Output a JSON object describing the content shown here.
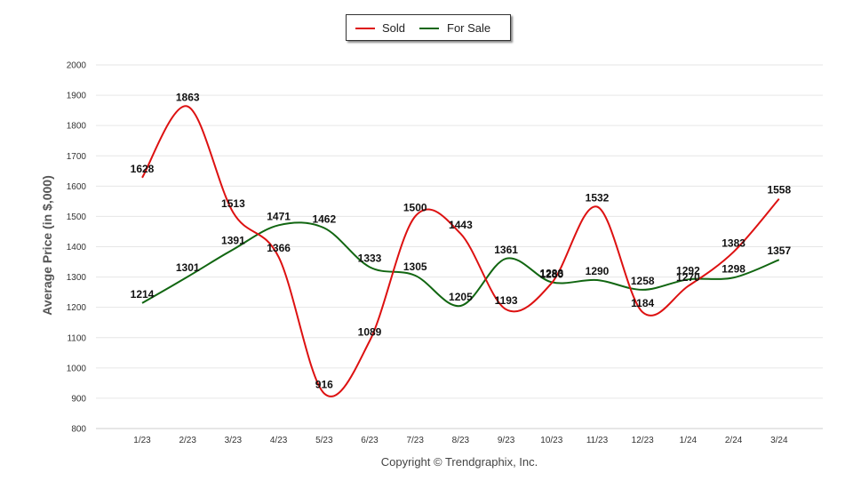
{
  "chart_data": {
    "type": "line",
    "categories": [
      "1/23",
      "2/23",
      "3/23",
      "4/23",
      "5/23",
      "6/23",
      "7/23",
      "8/23",
      "9/23",
      "10/23",
      "11/23",
      "12/23",
      "1/24",
      "2/24",
      "3/24"
    ],
    "series": [
      {
        "name": "Sold",
        "color": "#dd1111",
        "values": [
          1628,
          1863,
          1513,
          1366,
          916,
          1089,
          1500,
          1443,
          1193,
          1280,
          1532,
          1184,
          1270,
          1383,
          1558
        ]
      },
      {
        "name": "For Sale",
        "color": "#116611",
        "values": [
          1214,
          1301,
          1391,
          1471,
          1462,
          1333,
          1305,
          1205,
          1361,
          1283,
          1290,
          1258,
          1292,
          1298,
          1357
        ]
      }
    ],
    "xlabel": "",
    "ylabel": "Average Price (in $,000)",
    "ylim": [
      800,
      2000
    ],
    "yticks": [
      800,
      900,
      1000,
      1100,
      1200,
      1300,
      1400,
      1500,
      1600,
      1700,
      1800,
      1900,
      2000
    ],
    "grid": true,
    "legend_position": "top-center"
  },
  "footer": "Copyright © Trendgraphix, Inc."
}
